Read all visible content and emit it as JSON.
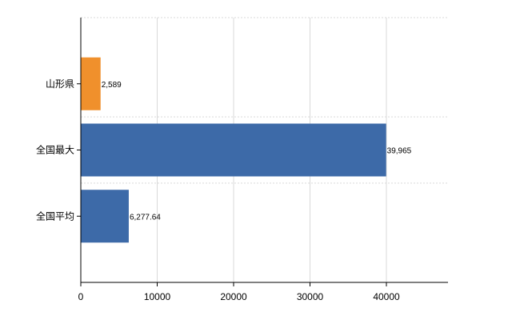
{
  "chart_data": {
    "type": "bar",
    "orientation": "horizontal",
    "categories": [
      "山形県",
      "全国最大",
      "全国平均"
    ],
    "values": [
      2589,
      39965,
      6277.64
    ],
    "value_labels": [
      "2,589",
      "39,965",
      "6,277.64"
    ],
    "bar_colors": [
      "#f0902c",
      "#3d6aa8",
      "#3d6aa8"
    ],
    "xlim": [
      0,
      48000
    ],
    "xticks": [
      0,
      10000,
      20000,
      30000,
      40000
    ],
    "xtick_labels": [
      "0",
      "10000",
      "20000",
      "30000",
      "40000"
    ],
    "grid": true,
    "title": "",
    "xlabel": "",
    "ylabel": ""
  }
}
